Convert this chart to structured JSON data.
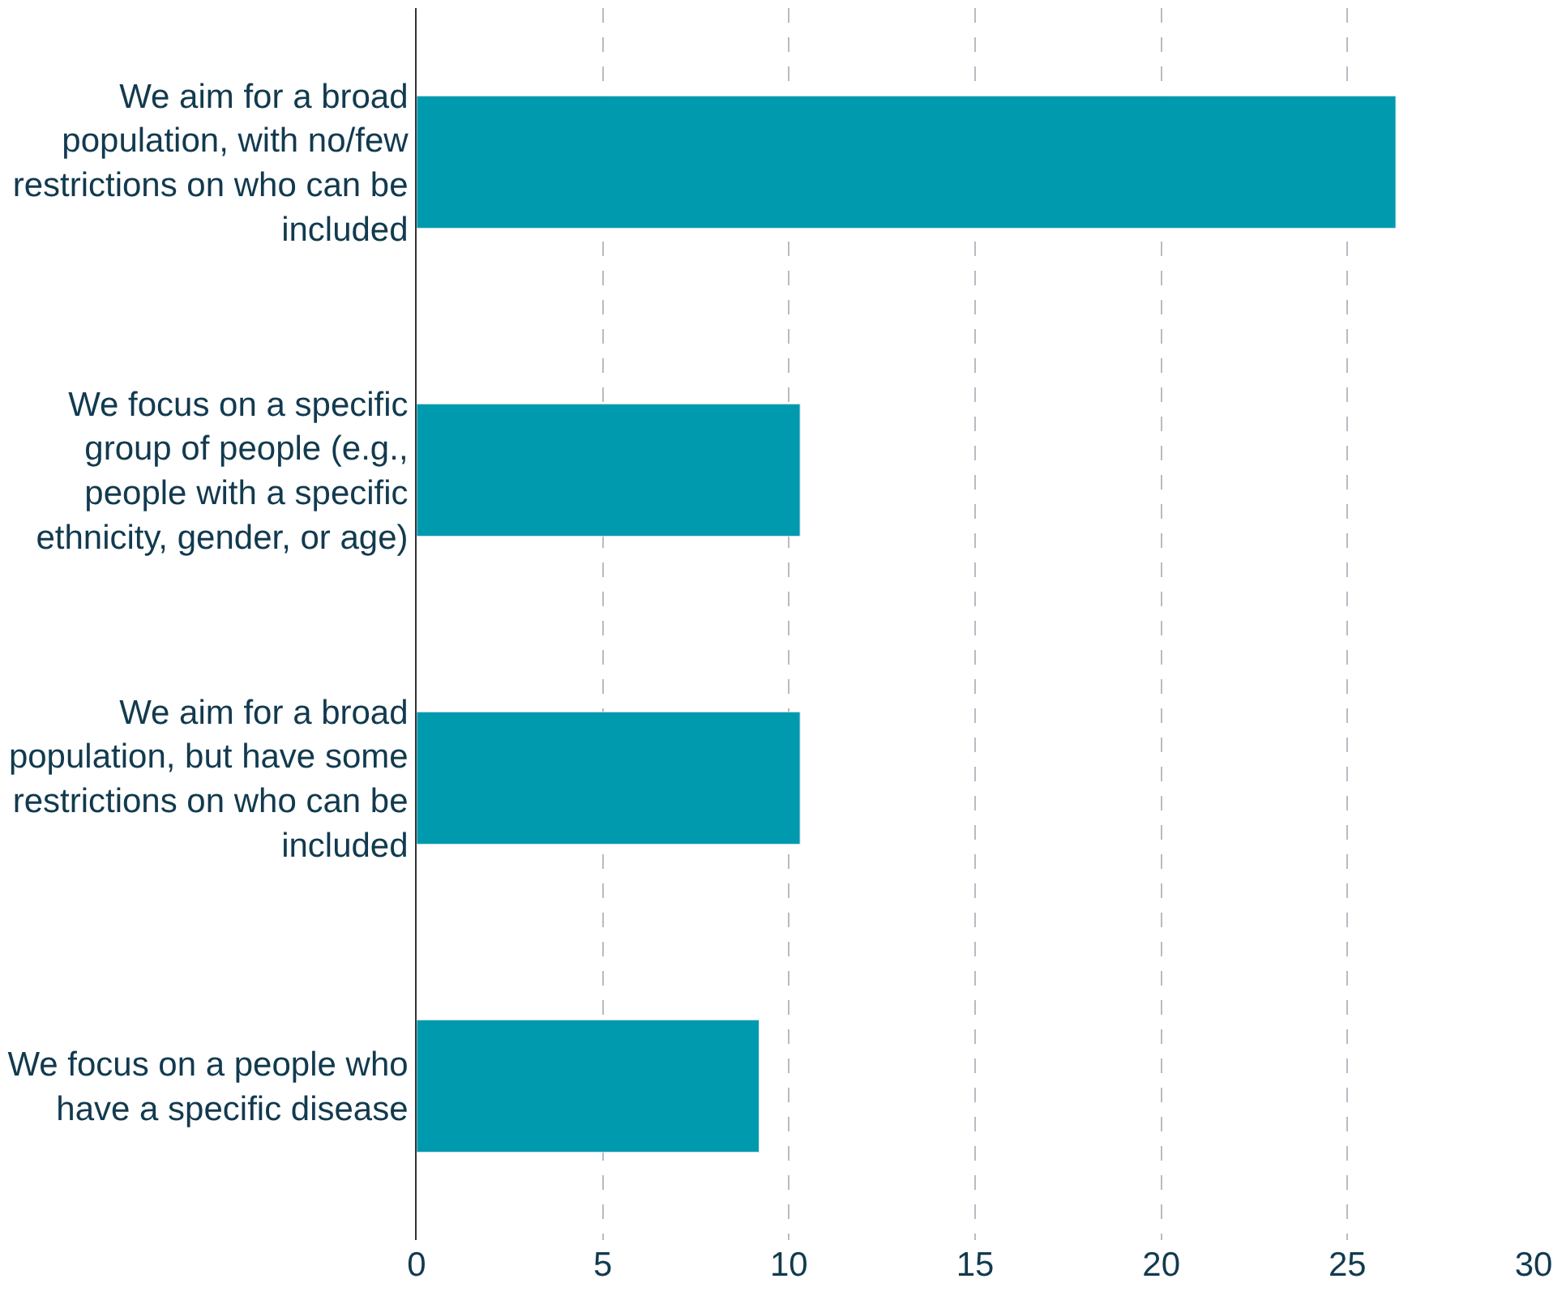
{
  "chart_data": {
    "type": "bar",
    "orientation": "horizontal",
    "categories": [
      "We aim for a broad population, with no/few restrictions on who can be included",
      "We focus on a specific group of people (e.g., people with a specific ethnicity, gender, or age)",
      "We aim for a broad population, but have some restrictions on who can be included",
      "We focus on a people who have a specific disease"
    ],
    "values": [
      26.3,
      10.3,
      10.3,
      9.2
    ],
    "color": "#009aaf",
    "xlim": [
      0,
      30
    ],
    "xticks": [
      0,
      5,
      10,
      15,
      20,
      25,
      30
    ],
    "grid": "x",
    "legend": false
  }
}
